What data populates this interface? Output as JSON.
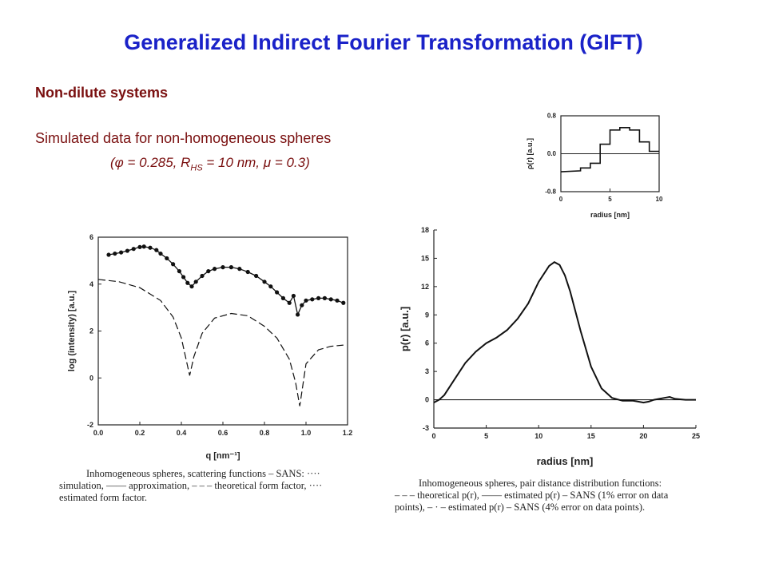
{
  "title": "Generalized Indirect Fourier Transformation (GIFT)",
  "subtitle": "Non-dilute systems",
  "description": "Simulated data for non-homogeneous spheres",
  "params": {
    "open": "(",
    "phi_symbol": "φ",
    "phi_value": " = 0.285, R",
    "rhs_sub": "HS",
    "rhs_value": " = 10 nm, ",
    "mu_symbol": "μ",
    "mu_value": " = 0.3",
    "close": ")"
  },
  "chart_data": [
    {
      "type": "line",
      "xlabel": "radius [nm]",
      "ylabel": "ρ(r) [a.u.]",
      "xlim": [
        0,
        10
      ],
      "ylim": [
        -0.8,
        0.8
      ],
      "xticks": [
        "0",
        "5",
        "10"
      ],
      "yticks": [
        "0.8",
        "0.0",
        "-0.8"
      ],
      "x": [
        0,
        2,
        2,
        3,
        3,
        4,
        4,
        5,
        5,
        6,
        6,
        7,
        7,
        8,
        8,
        9,
        9,
        10
      ],
      "y": [
        -0.38,
        -0.36,
        -0.3,
        -0.3,
        -0.2,
        -0.2,
        0.2,
        0.2,
        0.5,
        0.5,
        0.55,
        0.55,
        0.5,
        0.5,
        0.25,
        0.25,
        0.05,
        0.05
      ]
    },
    {
      "type": "line",
      "xlabel": "q [nm⁻¹]",
      "ylabel": "log (intensity) [a.u.]",
      "xlim": [
        0,
        1.2
      ],
      "ylim": [
        -2,
        6
      ],
      "xticks": [
        "0.0",
        "0.2",
        "0.4",
        "0.6",
        "0.8",
        "1.0",
        "1.2"
      ],
      "yticks": [
        "-2",
        "0",
        "2",
        "4",
        "6"
      ],
      "series": [
        {
          "style": "points",
          "x": [
            0.05,
            0.08,
            0.11,
            0.14,
            0.17,
            0.2,
            0.22,
            0.25,
            0.28,
            0.3,
            0.33,
            0.36,
            0.39,
            0.41,
            0.43,
            0.45,
            0.47,
            0.5,
            0.53,
            0.56,
            0.6,
            0.64,
            0.68,
            0.72,
            0.76,
            0.8,
            0.83,
            0.86,
            0.89,
            0.92,
            0.94,
            0.96,
            0.98,
            1.0,
            1.03,
            1.06,
            1.09,
            1.12,
            1.15,
            1.18
          ],
          "y": [
            5.25,
            5.3,
            5.35,
            5.42,
            5.5,
            5.58,
            5.6,
            5.55,
            5.45,
            5.3,
            5.1,
            4.85,
            4.55,
            4.3,
            4.05,
            3.9,
            4.1,
            4.35,
            4.55,
            4.65,
            4.72,
            4.72,
            4.65,
            4.52,
            4.35,
            4.1,
            3.9,
            3.65,
            3.4,
            3.2,
            3.5,
            2.7,
            3.1,
            3.3,
            3.35,
            3.4,
            3.4,
            3.35,
            3.3,
            3.2
          ]
        },
        {
          "style": "dashed",
          "x": [
            0,
            0.1,
            0.2,
            0.3,
            0.36,
            0.4,
            0.42,
            0.44,
            0.46,
            0.5,
            0.56,
            0.64,
            0.72,
            0.8,
            0.86,
            0.92,
            0.95,
            0.97,
            1.0,
            1.06,
            1.12,
            1.18
          ],
          "y": [
            4.2,
            4.1,
            3.85,
            3.3,
            2.6,
            1.7,
            0.9,
            0.1,
            0.9,
            1.9,
            2.55,
            2.75,
            2.65,
            2.2,
            1.7,
            0.8,
            -0.2,
            -1.2,
            0.6,
            1.2,
            1.35,
            1.4
          ]
        }
      ]
    },
    {
      "type": "line",
      "xlabel": "radius [nm]",
      "ylabel": "p(r) [a.u.]",
      "xlim": [
        0,
        25
      ],
      "ylim": [
        -3,
        18
      ],
      "xticks": [
        "0",
        "5",
        "10",
        "15",
        "20",
        "25"
      ],
      "yticks": [
        "-3",
        "0",
        "3",
        "6",
        "9",
        "12",
        "15",
        "18"
      ],
      "series": [
        {
          "style": "solid",
          "x": [
            0,
            0.5,
            1,
            2,
            3,
            4,
            5,
            6,
            7,
            8,
            9,
            10,
            11,
            11.5,
            12,
            12.5,
            13,
            14,
            15,
            16,
            17,
            18,
            19,
            19.5,
            20,
            20.5,
            21,
            22,
            22.5,
            23,
            24,
            25
          ],
          "y": [
            -0.3,
            0,
            0.5,
            2.2,
            3.9,
            5.1,
            6,
            6.6,
            7.4,
            8.6,
            10.2,
            12.5,
            14.2,
            14.6,
            14.3,
            13.2,
            11.5,
            7.3,
            3.5,
            1.2,
            0.2,
            -0.1,
            -0.1,
            -0.2,
            -0.3,
            -0.2,
            0,
            0.2,
            0.3,
            0.1,
            0,
            0
          ]
        }
      ]
    }
  ],
  "captions": {
    "left": [
      "Inhomogeneous spheres, scattering functions – SANS: ····",
      "simulation, —— approximation, – – – theoretical form factor, ····",
      "estimated form factor."
    ],
    "right": [
      "Inhomogeneous spheres, pair distance distribution functions:",
      "– – – theoretical p(r), —— estimated p(r) – SANS (1% error on data",
      "points), – · – estimated p(r) – SANS (4% error on data points)."
    ]
  }
}
